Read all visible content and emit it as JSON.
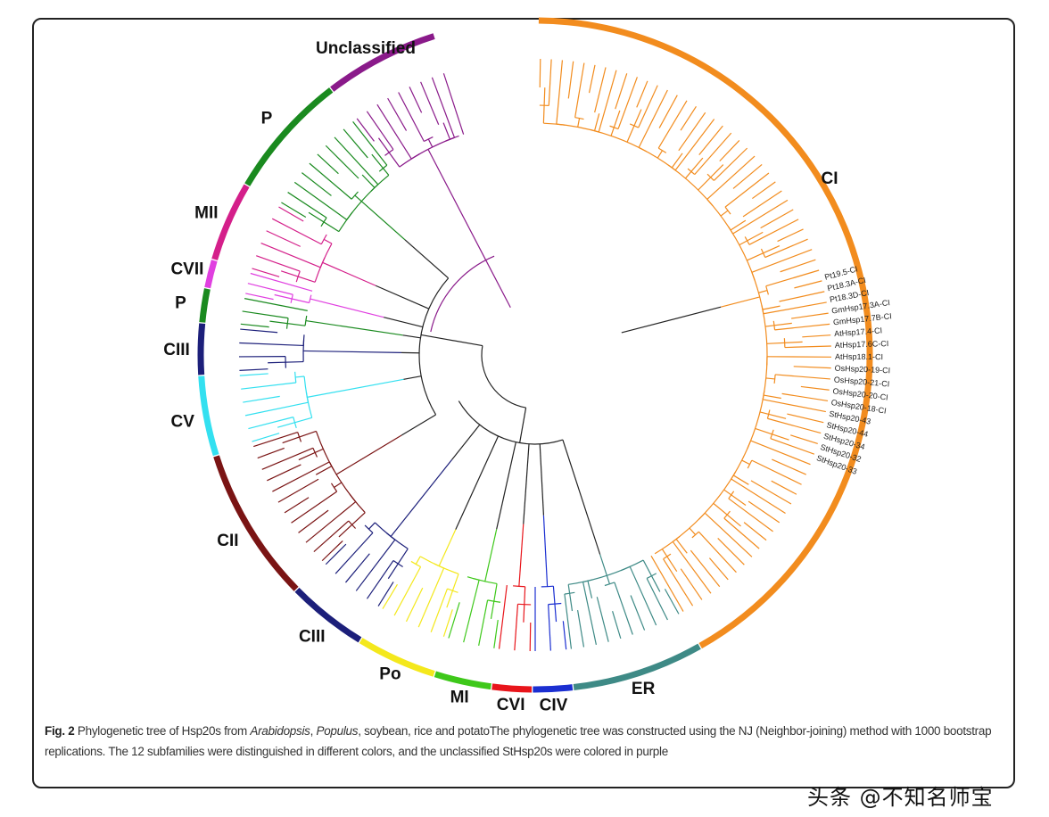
{
  "figure": {
    "clades": [
      {
        "label": "CI",
        "color": "#f28c1e"
      },
      {
        "label": "ER",
        "color": "#3e8a86"
      },
      {
        "label": "CIV",
        "color": "#1b2fd1"
      },
      {
        "label": "CVI",
        "color": "#e8151b"
      },
      {
        "label": "MI",
        "color": "#3ec81a"
      },
      {
        "label": "Po",
        "color": "#f4e81c"
      },
      {
        "label": "CIII",
        "color": "#1c1f7a"
      },
      {
        "label": "CII",
        "color": "#7a1414"
      },
      {
        "label": "CV",
        "color": "#33e0f0"
      },
      {
        "label": "CIII",
        "color": "#1c1f7a"
      },
      {
        "label": "P",
        "color": "#1a8a1f"
      },
      {
        "label": "CVII",
        "color": "#e040e0"
      },
      {
        "label": "MII",
        "color": "#d41f8a"
      },
      {
        "label": "P",
        "color": "#1a8a1f"
      },
      {
        "label": "Unclassified",
        "color": "#8a1a8a"
      }
    ],
    "sample_leaves": [
      "Pt19.5-CI",
      "Pt18.3A-CI",
      "Pt18.3D-CI",
      "GmHsp17.3A-CI",
      "GmHsp17.7B-CI",
      "AtHsp17.4-CI",
      "AtHsp17.6C-CI",
      "AtHsp18.1-CI",
      "OsHsp20-19-CI",
      "OsHsp20-21-CI",
      "OsHsp20-20-CI",
      "OsHsp20-18-CI",
      "StHsp20-43",
      "StHsp20-44",
      "StHsp20-34",
      "StHsp20-32",
      "StHsp20-33"
    ],
    "root_color": "#222222"
  },
  "caption": {
    "fig_label": "Fig. 2",
    "text1": " Phylogenetic tree of Hsp20s from ",
    "italic1": "Arabidopsis",
    "text2": ", ",
    "italic2": "Populus",
    "text3": ", soybean, rice and potatoThe phylogenetic tree was constructed using the NJ (Neighbor-joining) method with 1000 bootstrap replications. The 12 subfamilies were distinguished in different colors, and the unclassified StHsp20s were colored in purple"
  },
  "watermark": "头条 @不知名师宝"
}
